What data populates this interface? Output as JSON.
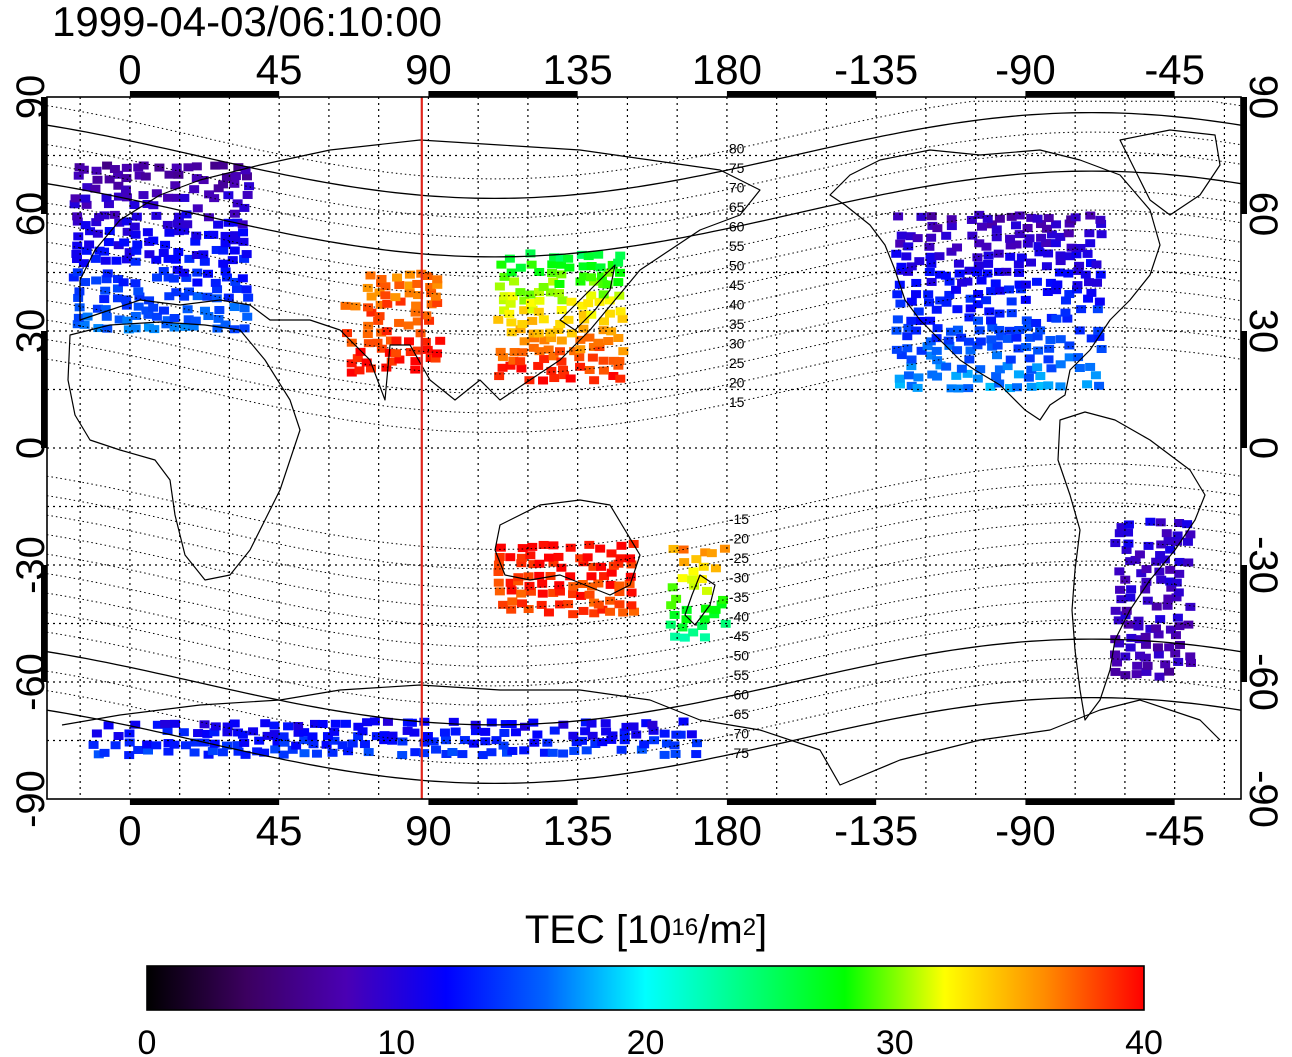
{
  "timestamp": "1999-04-03/06:10:00",
  "longitude_ticks": [
    "0",
    "45",
    "90",
    "135",
    "180",
    "-135",
    "-90",
    "-45"
  ],
  "latitude_ticks": [
    "90",
    "60",
    "30",
    "0",
    "-30",
    "-60",
    "-90"
  ],
  "magnetic_latitude_labels": [
    "80",
    "75",
    "70",
    "65",
    "60",
    "55",
    "50",
    "45",
    "40",
    "35",
    "30",
    "25",
    "20",
    "15",
    "-15",
    "-20",
    "-25",
    "-30",
    "-35",
    "-40",
    "-45",
    "-50",
    "-55",
    "-60",
    "-65",
    "-70",
    "-75"
  ],
  "marker_line": {
    "longitude": 88,
    "color": "#e0241c"
  },
  "colorbar": {
    "title_main": "TEC  [10",
    "title_exp": "16",
    "title_unit": "/m",
    "title_exp2": "2",
    "title_end": "]",
    "min": 0,
    "max": 40,
    "tick_labels": [
      "0",
      "10",
      "20",
      "30",
      "40"
    ],
    "colors": [
      "#000000",
      "#3c0060",
      "#4a00b4",
      "#0000ff",
      "#0064ff",
      "#00ffff",
      "#00ff7f",
      "#00ff00",
      "#ffff00",
      "#ff8c00",
      "#ff0000"
    ]
  },
  "tec_regions": [
    {
      "name": "europe",
      "lon": [
        -16,
        36
      ],
      "lat": [
        31,
        73
      ],
      "tec_south": 16,
      "tec_north": 7
    },
    {
      "name": "north-america",
      "lon": [
        -128,
        -68
      ],
      "lat": [
        16,
        60
      ],
      "tec_south": 17,
      "tec_north": 8
    },
    {
      "name": "east-asia",
      "lon": [
        112,
        150
      ],
      "lat": [
        18,
        50
      ],
      "tec_south": 40,
      "tec_north": 26
    },
    {
      "name": "australia",
      "lon": [
        112,
        152
      ],
      "lat": [
        -42,
        -24
      ],
      "tec_south": 38,
      "tec_north": 40
    },
    {
      "name": "south-america",
      "lon": [
        -62,
        -40
      ],
      "lat": [
        -58,
        -18
      ],
      "tec_south": 8,
      "tec_north": 10
    },
    {
      "name": "middle-east",
      "lon": [
        66,
        94
      ],
      "lat": [
        20,
        46
      ],
      "tec_south": 40,
      "tec_north": 36
    },
    {
      "name": "new-zealand",
      "lon": [
        164,
        180
      ],
      "lat": [
        -48,
        -26
      ],
      "tec_south": 24,
      "tec_north": 36
    },
    {
      "name": "antarctica",
      "lon": [
        -10,
        170
      ],
      "lat": [
        -78,
        -70
      ],
      "tec_south": 14,
      "tec_north": 11
    }
  ]
}
